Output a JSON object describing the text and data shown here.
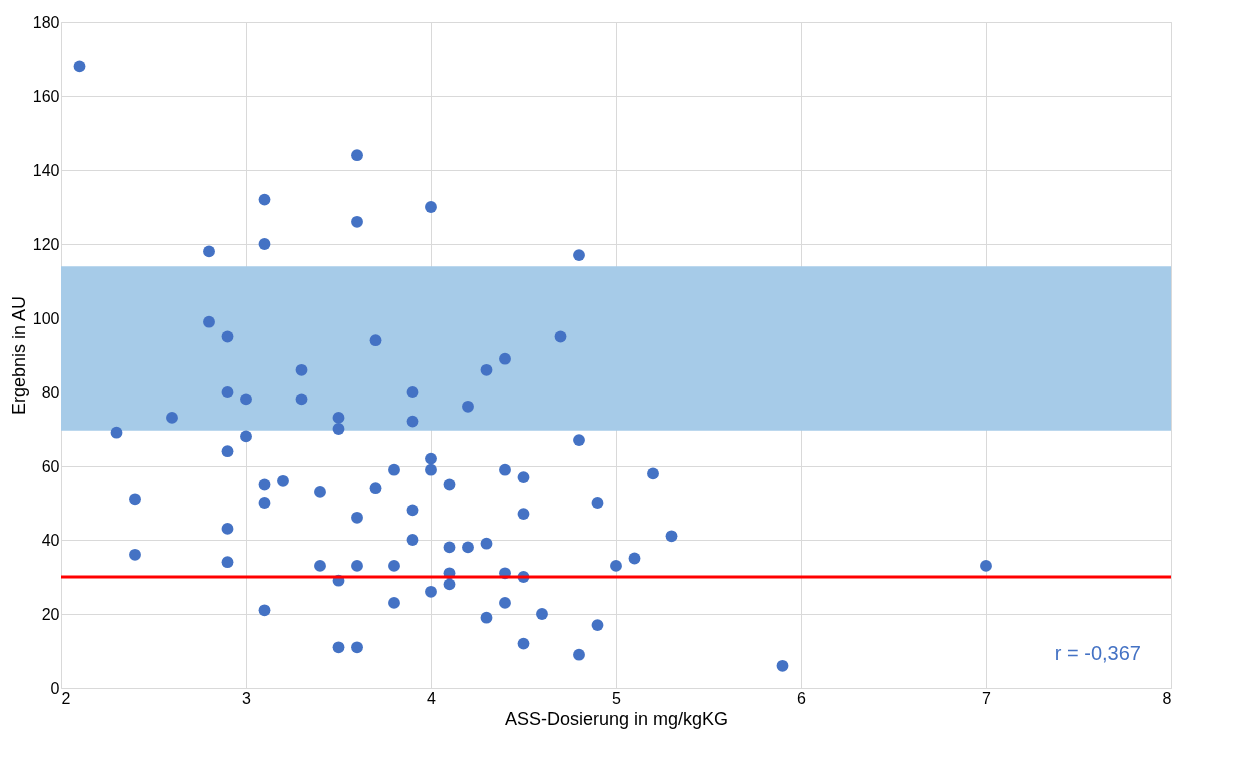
{
  "chart_data": {
    "type": "scatter",
    "xlabel": "ASS-Dosierung in mg/kgKG",
    "ylabel": "Ergebnis in AU",
    "xlim": [
      2,
      8
    ],
    "xticks": [
      2,
      3,
      4,
      5,
      6,
      7,
      8
    ],
    "ylim": [
      0,
      180
    ],
    "yticks": [
      0,
      20,
      40,
      60,
      80,
      100,
      120,
      140,
      160,
      180
    ],
    "grid": true,
    "marker": "circle",
    "series": [
      {
        "color": "#4472c4",
        "x": [
          2.1,
          2.3,
          2.4,
          2.4,
          2.6,
          2.8,
          2.8,
          2.9,
          2.9,
          2.9,
          2.9,
          2.9,
          3.0,
          3.0,
          3.1,
          3.1,
          3.1,
          3.1,
          3.1,
          3.2,
          3.3,
          3.3,
          3.4,
          3.4,
          3.5,
          3.5,
          3.5,
          3.5,
          3.6,
          3.6,
          3.6,
          3.6,
          3.6,
          3.7,
          3.7,
          3.8,
          3.8,
          3.8,
          3.9,
          3.9,
          3.9,
          3.9,
          4.0,
          4.0,
          4.0,
          4.0,
          4.1,
          4.1,
          4.1,
          4.1,
          4.2,
          4.2,
          4.3,
          4.3,
          4.3,
          4.4,
          4.4,
          4.4,
          4.4,
          4.5,
          4.5,
          4.5,
          4.5,
          4.6,
          4.7,
          4.8,
          4.8,
          4.8,
          4.9,
          4.9,
          5.0,
          5.1,
          5.2,
          5.3,
          5.9,
          7.0
        ],
        "values": [
          168,
          69,
          51,
          36,
          73,
          118,
          99,
          95,
          80,
          64,
          43,
          34,
          78,
          68,
          132,
          120,
          55,
          50,
          21,
          56,
          86,
          78,
          53,
          33,
          73,
          70,
          29,
          11,
          144,
          126,
          46,
          33,
          11,
          94,
          54,
          59,
          33,
          23,
          80,
          72,
          48,
          40,
          130,
          62,
          59,
          26,
          55,
          38,
          31,
          28,
          76,
          38,
          86,
          39,
          19,
          89,
          59,
          31,
          23,
          57,
          47,
          30,
          12,
          20,
          95,
          117,
          67,
          9,
          50,
          17,
          33,
          35,
          58,
          41,
          6,
          33
        ]
      }
    ],
    "bands": [
      {
        "axis": "y",
        "from": 69.5,
        "to": 114,
        "color": "#a6cbe8"
      }
    ],
    "ref_lines": [
      {
        "axis": "y",
        "value": 30,
        "color": "#ff0000",
        "line_style": "solid"
      }
    ],
    "annotations": [
      "r = -0,367"
    ]
  }
}
